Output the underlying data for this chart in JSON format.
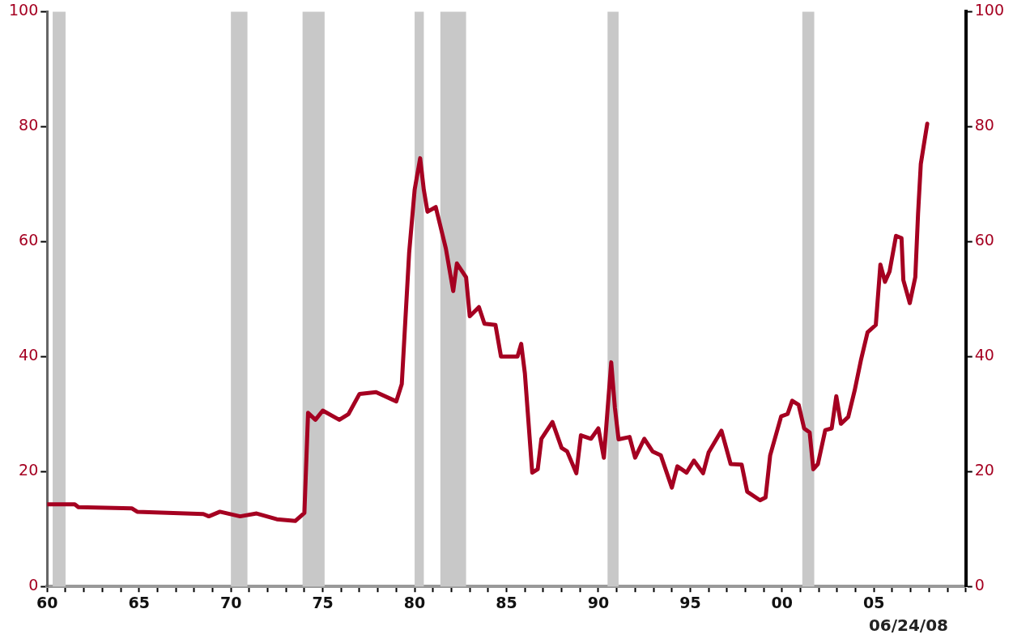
{
  "chart_data": {
    "type": "line",
    "annotations": [
      "06/24/08"
    ],
    "x": [
      1960.0,
      1961.5,
      1961.7,
      1964.6,
      1964.9,
      1968.5,
      1968.8,
      1969.4,
      1970.5,
      1971.4,
      1972.5,
      1973.5,
      1974.0,
      1974.2,
      1974.6,
      1975.0,
      1975.9,
      1976.4,
      1977.0,
      1977.9,
      1979.0,
      1979.3,
      1979.7,
      1980.0,
      1980.3,
      1980.5,
      1980.7,
      1981.15,
      1981.7,
      1982.1,
      1982.3,
      1982.8,
      1983.0,
      1983.5,
      1983.8,
      1984.4,
      1984.7,
      1985.6,
      1985.8,
      1986.0,
      1986.4,
      1986.7,
      1986.9,
      1987.5,
      1988.0,
      1988.3,
      1988.8,
      1989.05,
      1989.6,
      1990.0,
      1990.3,
      1990.7,
      1990.9,
      1991.1,
      1991.7,
      1992.0,
      1992.5,
      1992.95,
      1993.4,
      1994.0,
      1994.3,
      1994.8,
      1995.2,
      1995.7,
      1996.0,
      1996.7,
      1997.2,
      1997.8,
      1998.1,
      1998.8,
      1999.1,
      1999.35,
      1999.95,
      2000.3,
      2000.55,
      2000.9,
      2001.2,
      2001.5,
      2001.7,
      2001.95,
      2002.35,
      2002.7,
      2002.95,
      2003.2,
      2003.6,
      2003.95,
      2004.3,
      2004.65,
      2005.1,
      2005.35,
      2005.6,
      2005.85,
      2006.2,
      2006.5,
      2006.6,
      2006.95,
      2007.25,
      2007.4,
      2007.55,
      2007.7,
      2007.9
    ],
    "series": [
      {
        "color": "#a50021",
        "values": [
          14.3,
          14.3,
          13.8,
          13.6,
          13.0,
          12.6,
          12.2,
          13.0,
          12.2,
          12.7,
          11.7,
          11.4,
          12.8,
          30.2,
          29.0,
          30.6,
          29.0,
          30.0,
          33.5,
          33.8,
          32.2,
          35.2,
          58,
          69,
          74.5,
          69,
          65.2,
          66,
          58.8,
          51.4,
          56.2,
          53.8,
          47.0,
          48.6,
          45.7,
          45.5,
          40.0,
          40.0,
          42.2,
          37.1,
          19.8,
          20.4,
          25.7,
          28.6,
          24.1,
          23.5,
          19.7,
          26.3,
          25.7,
          27.5,
          22.4,
          39.0,
          31.1,
          25.6,
          26.0,
          22.4,
          25.7,
          23.5,
          22.8,
          17.2,
          20.9,
          19.8,
          21.9,
          19.7,
          23.3,
          27.1,
          21.3,
          21.2,
          16.5,
          15.0,
          15.5,
          22.8,
          29.6,
          30.0,
          32.3,
          31.6,
          27.5,
          26.8,
          20.4,
          21.3,
          27.2,
          27.5,
          33.1,
          28.3,
          29.5,
          34.1,
          39.5,
          44.2,
          45.5,
          56.0,
          53.0,
          54.8,
          61,
          60.6,
          53.3,
          49.3,
          53.8,
          64.8,
          73.5,
          76.5,
          80.5
        ]
      }
    ],
    "xlim": [
      1960,
      2010
    ],
    "xticks": [
      {
        "value": 1960,
        "label": "60"
      },
      {
        "value": 1961,
        "label": null
      },
      {
        "value": 1962,
        "label": null
      },
      {
        "value": 1963,
        "label": null
      },
      {
        "value": 1964,
        "label": null
      },
      {
        "value": 1965,
        "label": "65"
      },
      {
        "value": 1966,
        "label": null
      },
      {
        "value": 1967,
        "label": null
      },
      {
        "value": 1968,
        "label": null
      },
      {
        "value": 1969,
        "label": null
      },
      {
        "value": 1970,
        "label": "70"
      },
      {
        "value": 1971,
        "label": null
      },
      {
        "value": 1972,
        "label": null
      },
      {
        "value": 1973,
        "label": null
      },
      {
        "value": 1974,
        "label": null
      },
      {
        "value": 1975,
        "label": "75"
      },
      {
        "value": 1976,
        "label": null
      },
      {
        "value": 1977,
        "label": null
      },
      {
        "value": 1978,
        "label": null
      },
      {
        "value": 1979,
        "label": null
      },
      {
        "value": 1980,
        "label": "80"
      },
      {
        "value": 1981,
        "label": null
      },
      {
        "value": 1982,
        "label": null
      },
      {
        "value": 1983,
        "label": null
      },
      {
        "value": 1984,
        "label": null
      },
      {
        "value": 1985,
        "label": "85"
      },
      {
        "value": 1986,
        "label": null
      },
      {
        "value": 1987,
        "label": null
      },
      {
        "value": 1988,
        "label": null
      },
      {
        "value": 1989,
        "label": null
      },
      {
        "value": 1990,
        "label": "90"
      },
      {
        "value": 1991,
        "label": null
      },
      {
        "value": 1992,
        "label": null
      },
      {
        "value": 1993,
        "label": null
      },
      {
        "value": 1994,
        "label": null
      },
      {
        "value": 1995,
        "label": "95"
      },
      {
        "value": 1996,
        "label": null
      },
      {
        "value": 1997,
        "label": null
      },
      {
        "value": 1998,
        "label": null
      },
      {
        "value": 1999,
        "label": null
      },
      {
        "value": 2000,
        "label": "00"
      },
      {
        "value": 2001,
        "label": null
      },
      {
        "value": 2002,
        "label": null
      },
      {
        "value": 2003,
        "label": null
      },
      {
        "value": 2004,
        "label": null
      },
      {
        "value": 2005,
        "label": "05"
      },
      {
        "value": 2006,
        "label": null
      },
      {
        "value": 2007,
        "label": null
      },
      {
        "value": 2008,
        "label": null
      },
      {
        "value": 2009,
        "label": null
      },
      {
        "value": 2010,
        "label": null
      }
    ],
    "ylim": [
      0,
      100
    ],
    "yticks": [
      0,
      20,
      40,
      60,
      80,
      100
    ],
    "y2lim": [
      0,
      100
    ],
    "y2ticks": [
      0,
      20,
      40,
      60,
      80,
      100
    ],
    "bands": [
      {
        "axis": "x",
        "from": 1960.3,
        "to": 1961.0,
        "color": "#c8c8c8"
      },
      {
        "axis": "x",
        "from": 1970.0,
        "to": 1970.9,
        "color": "#c8c8c8"
      },
      {
        "axis": "x",
        "from": 1973.9,
        "to": 1975.1,
        "color": "#c8c8c8"
      },
      {
        "axis": "x",
        "from": 1980.0,
        "to": 1980.5,
        "color": "#c8c8c8"
      },
      {
        "axis": "x",
        "from": 1981.4,
        "to": 1982.8,
        "color": "#c8c8c8"
      },
      {
        "axis": "x",
        "from": 1990.5,
        "to": 1991.1,
        "color": "#c8c8c8"
      },
      {
        "axis": "x",
        "from": 2001.1,
        "to": 2001.75,
        "color": "#c8c8c8"
      }
    ],
    "legend": false,
    "marker": "none",
    "line_style": "solid"
  }
}
